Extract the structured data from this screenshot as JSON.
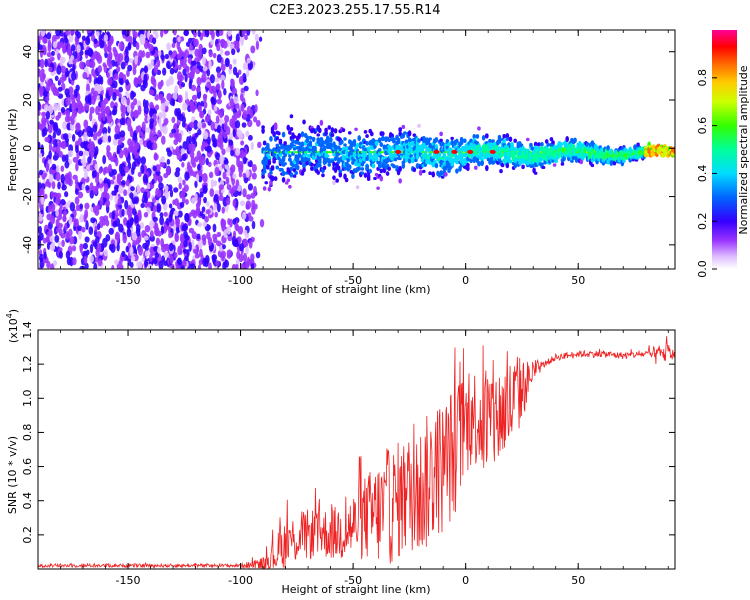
{
  "figure_title": "C2E3.2023.255.17.55.R14",
  "colors": {
    "snr_line": "#ee2222",
    "axis": "#000000",
    "colormap": [
      "#ffffff",
      "#f0e0ff",
      "#d9b3ff",
      "#9933ff",
      "#6600ee",
      "#0000ff",
      "#00ccff",
      "#00ff66",
      "#66ff00",
      "#ffcc00",
      "#ff6600",
      "#ff0000",
      "#ff00aa"
    ]
  },
  "chart_data": [
    {
      "type": "heatmap",
      "title": "",
      "xlabel": "Height of straight line (km)",
      "ylabel": "Frequency (Hz)",
      "xlim": [
        -190,
        93
      ],
      "ylim": [
        -50,
        49
      ],
      "x_ticks": [
        -150,
        -100,
        -50,
        0,
        50
      ],
      "y_ticks": [
        -40,
        -20,
        0,
        20,
        40
      ],
      "grid": false,
      "description_of_data": {
        "noise_region_x": [
          -190,
          -90
        ],
        "signal_start_x": -90,
        "signal_center_freq_hz": -2,
        "signal_bandwidth_hz_at_start": 25,
        "signal_bandwidth_hz_at_end": 3,
        "peak_amplitude_x": [
          -30,
          -13,
          -5,
          2,
          12
        ]
      },
      "colorbar": {
        "label": "Normalized spectral amplitude",
        "range": [
          0.0,
          1.0
        ],
        "ticks": [
          "0.0",
          "0.2",
          "0.4",
          "0.6",
          "0.8"
        ]
      }
    },
    {
      "type": "line",
      "title": "",
      "xlabel": "Height of straight line (km)",
      "ylabel": "SNR (10 * v/v)",
      "y_multiplier_label": "(x10",
      "y_multiplier_exp": "4",
      "y_multiplier_close": ")",
      "xlim": [
        -190,
        93
      ],
      "ylim": [
        0,
        1.4
      ],
      "x_ticks": [
        -150,
        -100,
        -50,
        0,
        50
      ],
      "y_ticks": [
        "0.2",
        "0.4",
        "0.6",
        "0.8",
        "1.0",
        "1.2",
        "1.4"
      ],
      "grid": false,
      "series": [
        {
          "x": [
            -190,
            -150,
            -100,
            -90,
            -85,
            -80,
            -75,
            -70,
            -65,
            -60,
            -55,
            -50,
            -45,
            -40,
            -35,
            -30,
            -25,
            -20,
            -15,
            -10,
            -5,
            0,
            5,
            10,
            15,
            20,
            25,
            30,
            35,
            40,
            50,
            60,
            70,
            80,
            85,
            90,
            93
          ],
          "y": [
            0.02,
            0.02,
            0.02,
            0.03,
            0.08,
            0.15,
            0.18,
            0.2,
            0.22,
            0.2,
            0.22,
            0.25,
            0.3,
            0.32,
            0.35,
            0.4,
            0.45,
            0.45,
            0.55,
            0.6,
            0.7,
            0.85,
            0.9,
            0.85,
            0.9,
            0.95,
            1.05,
            1.15,
            1.2,
            1.24,
            1.26,
            1.26,
            1.25,
            1.26,
            1.25,
            1.27,
            1.25
          ],
          "spike_amplitude": [
            0.01,
            0.01,
            0.01,
            0.04,
            0.1,
            0.15,
            0.15,
            0.15,
            0.15,
            0.15,
            0.18,
            0.2,
            0.25,
            0.3,
            0.35,
            0.35,
            0.35,
            0.4,
            0.4,
            0.4,
            0.4,
            0.3,
            0.3,
            0.4,
            0.3,
            0.3,
            0.2,
            0.05,
            0.02,
            0.02,
            0.02,
            0.02,
            0.02,
            0.02,
            0.06,
            0.06,
            0.03
          ]
        }
      ]
    }
  ]
}
